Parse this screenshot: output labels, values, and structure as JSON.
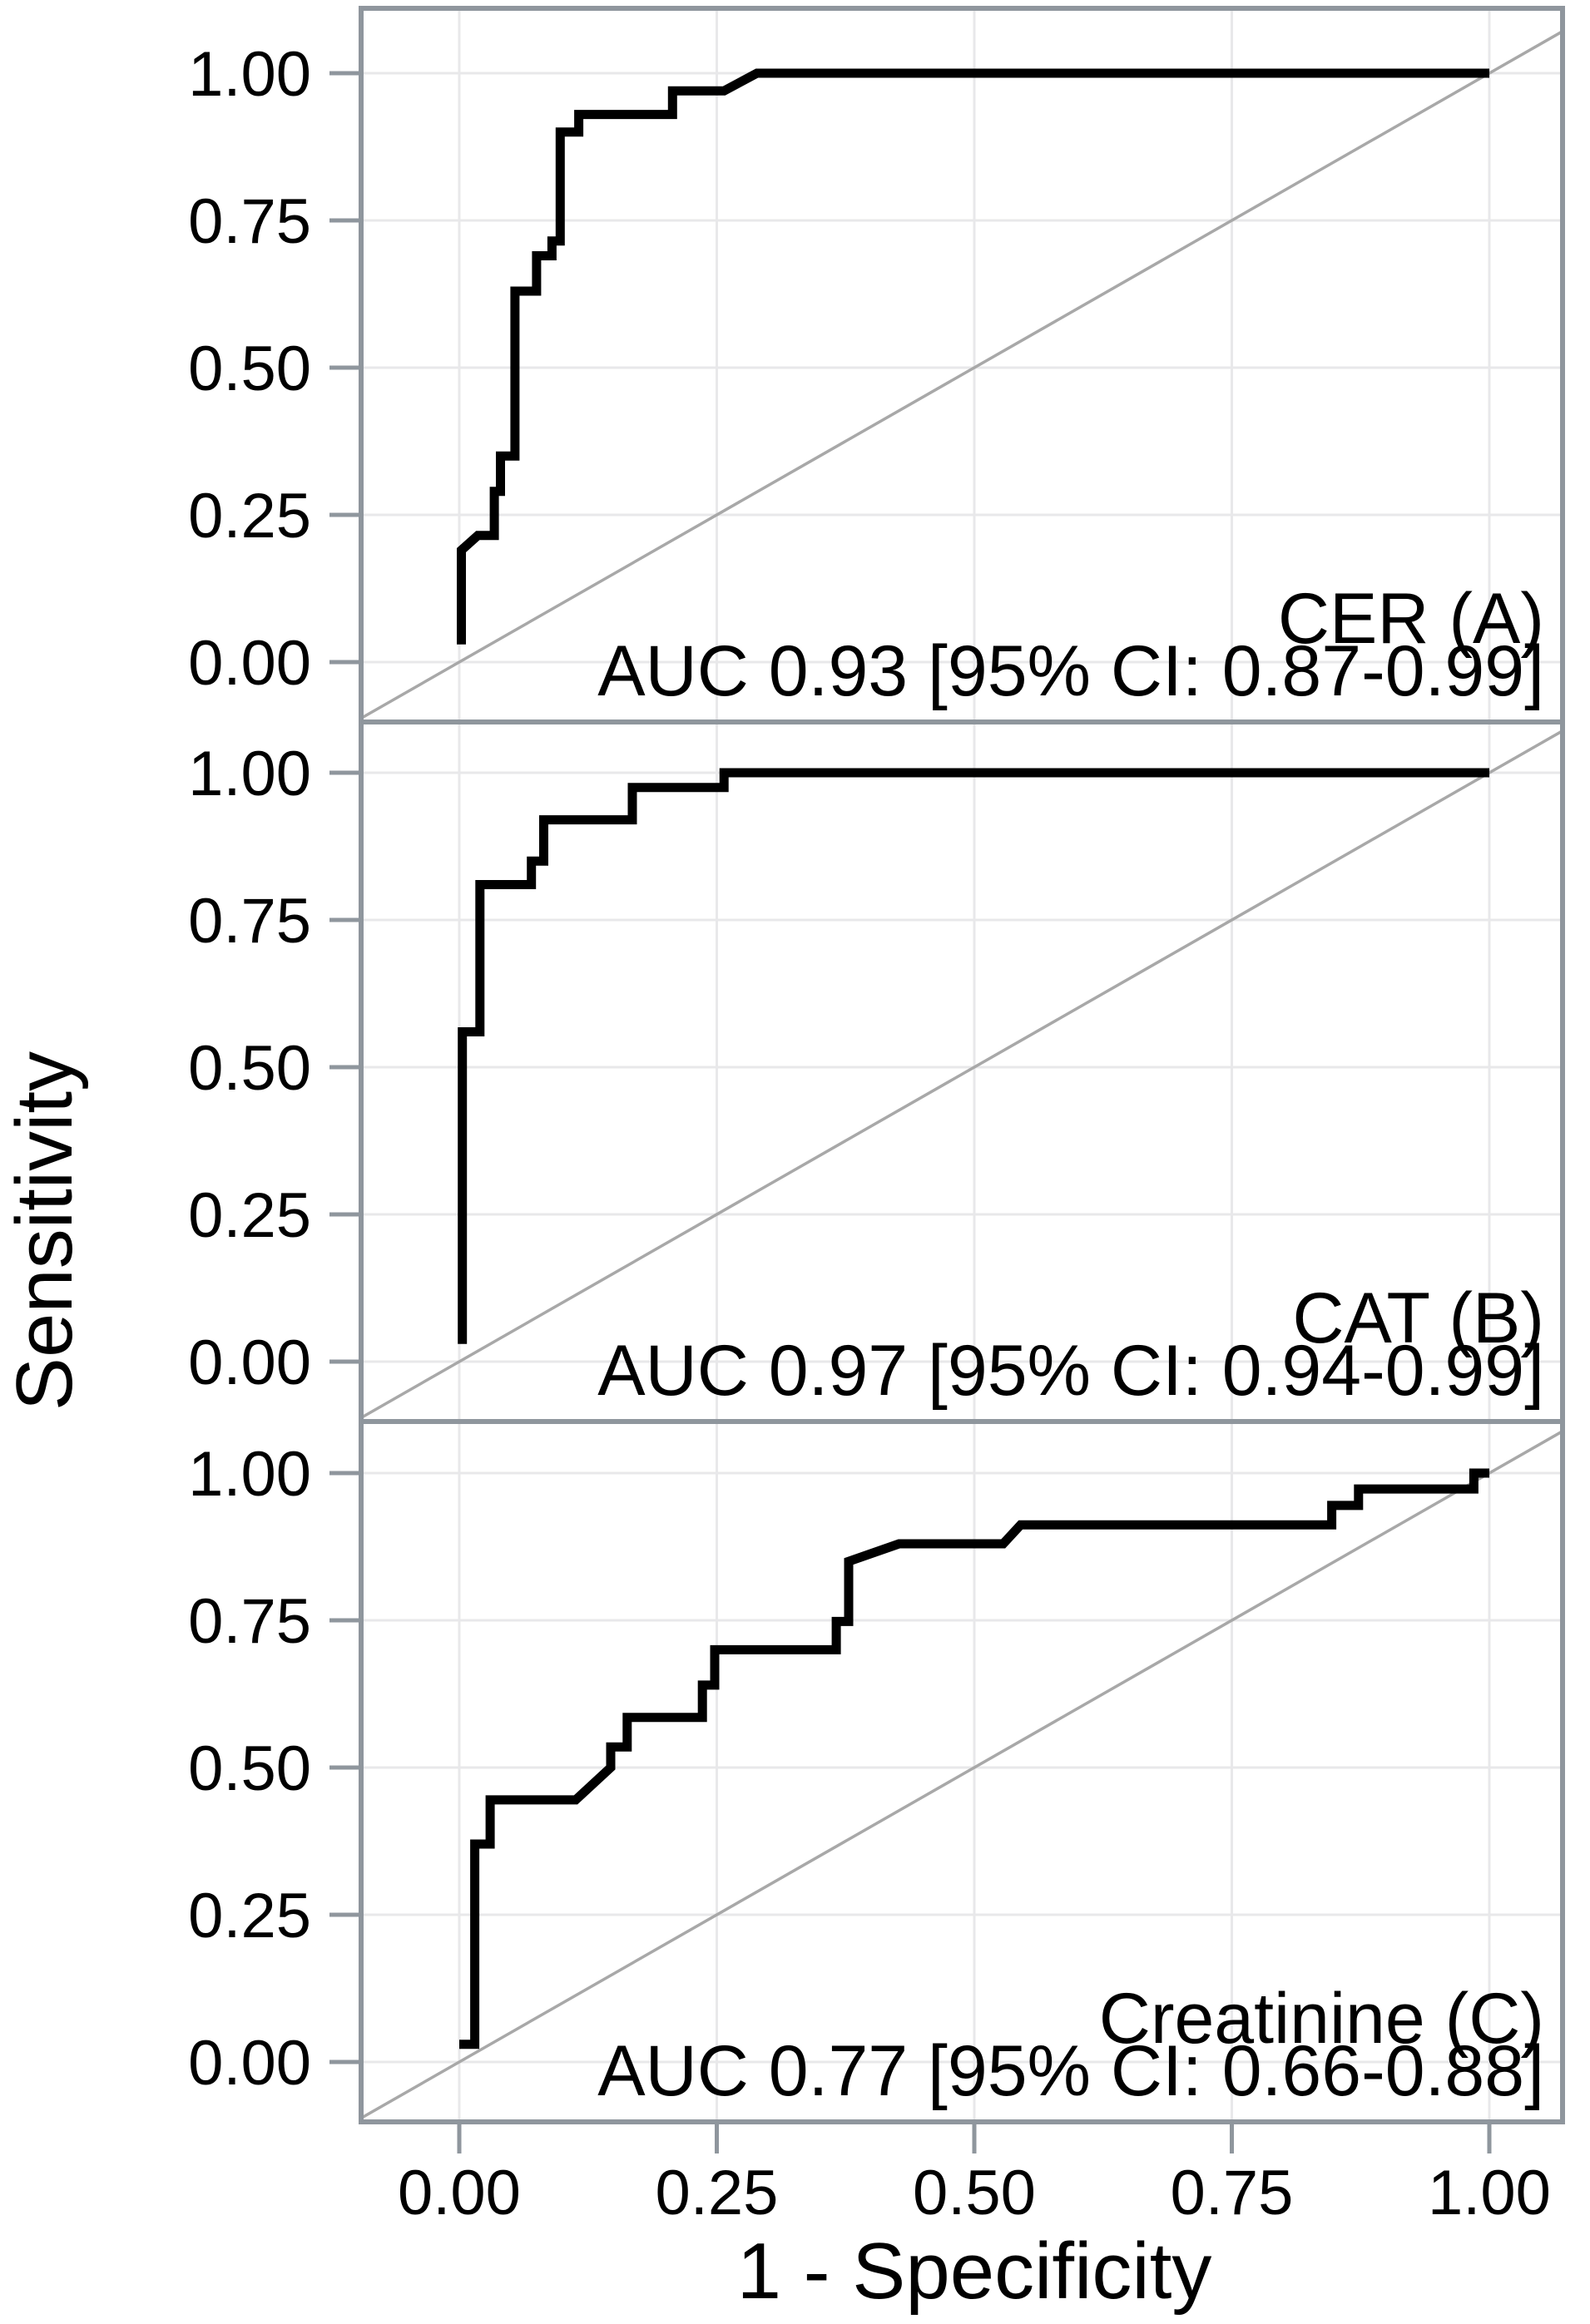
{
  "figure": {
    "background_color": "#ffffff",
    "x_axis": {
      "title": "1 - Specificity",
      "tick_labels": [
        "0.00",
        "0.25",
        "0.50",
        "0.75",
        "1.00"
      ],
      "tick_values": [
        0,
        0.25,
        0.5,
        0.75,
        1
      ],
      "range": [
        0,
        1
      ]
    },
    "y_axis": {
      "title": "Sensitivity",
      "tick_labels": [
        "1.00",
        "0.75",
        "0.50",
        "0.25",
        "0.00"
      ],
      "tick_values": [
        1,
        0.75,
        0.5,
        0.25,
        0
      ],
      "range": [
        0,
        1
      ]
    },
    "styles": {
      "curve_color": "#000000",
      "diagonal_color": "#a8a8a8",
      "grid_color": "#e8e8ea",
      "border_color": "#8f969d",
      "tick_color": "#8f969d",
      "text_color": "#000000"
    }
  },
  "chart_data": [
    {
      "type": "line",
      "panel_label": "CER (A)",
      "annotation": "AUC 0.93 [95% CI: 0.87-0.99]",
      "auc": 0.93,
      "ci_95": "0.87-0.99",
      "xlabel": "1 - Specificity",
      "ylabel": "Sensitivity",
      "xlim": [
        0,
        1
      ],
      "ylim": [
        0,
        1
      ],
      "grid": true,
      "legend": "none",
      "series": [
        {
          "name": "ROC curve",
          "points": [
            [
              0.002,
              0.03
            ],
            [
              0.002,
              0.19
            ],
            [
              0.018,
              0.215
            ],
            [
              0.034,
              0.215
            ],
            [
              0.034,
              0.29
            ],
            [
              0.04,
              0.29
            ],
            [
              0.04,
              0.35
            ],
            [
              0.054,
              0.35
            ],
            [
              0.054,
              0.63
            ],
            [
              0.075,
              0.63
            ],
            [
              0.075,
              0.69
            ],
            [
              0.09,
              0.69
            ],
            [
              0.09,
              0.715
            ],
            [
              0.098,
              0.715
            ],
            [
              0.098,
              0.9
            ],
            [
              0.116,
              0.9
            ],
            [
              0.116,
              0.93
            ],
            [
              0.207,
              0.93
            ],
            [
              0.207,
              0.97
            ],
            [
              0.257,
              0.97
            ],
            [
              0.289,
              1.0
            ],
            [
              1.0,
              1.0
            ]
          ]
        },
        {
          "name": "chance line",
          "points": [
            [
              0,
              0
            ],
            [
              1,
              1
            ]
          ]
        }
      ]
    },
    {
      "type": "line",
      "panel_label": "CAT (B)",
      "annotation": "AUC 0.97 [95% CI: 0.94-0.99]",
      "auc": 0.97,
      "ci_95": "0.94-0.99",
      "xlabel": "1 - Specificity",
      "ylabel": "Sensitivity",
      "xlim": [
        0,
        1
      ],
      "ylim": [
        0,
        1
      ],
      "grid": true,
      "legend": "none",
      "series": [
        {
          "name": "ROC curve",
          "points": [
            [
              0.003,
              0.03
            ],
            [
              0.003,
              0.56
            ],
            [
              0.02,
              0.56
            ],
            [
              0.02,
              0.81
            ],
            [
              0.07,
              0.81
            ],
            [
              0.07,
              0.85
            ],
            [
              0.082,
              0.85
            ],
            [
              0.082,
              0.92
            ],
            [
              0.168,
              0.92
            ],
            [
              0.168,
              0.975
            ],
            [
              0.257,
              0.975
            ],
            [
              0.257,
              1.0
            ],
            [
              1.0,
              1.0
            ]
          ]
        },
        {
          "name": "chance line",
          "points": [
            [
              0,
              0
            ],
            [
              1,
              1
            ]
          ]
        }
      ]
    },
    {
      "type": "line",
      "panel_label": "Creatinine (C)",
      "annotation": "AUC 0.77 [95% CI: 0.66-0.88]",
      "auc": 0.77,
      "ci_95": "0.66-0.88",
      "xlabel": "1 - Specificity",
      "ylabel": "Sensitivity",
      "xlim": [
        0,
        1
      ],
      "ylim": [
        0,
        1
      ],
      "grid": true,
      "legend": "none",
      "series": [
        {
          "name": "ROC curve",
          "points": [
            [
              0.0,
              0.03
            ],
            [
              0.015,
              0.03
            ],
            [
              0.015,
              0.37
            ],
            [
              0.03,
              0.37
            ],
            [
              0.03,
              0.445
            ],
            [
              0.113,
              0.445
            ],
            [
              0.147,
              0.5
            ],
            [
              0.147,
              0.535
            ],
            [
              0.163,
              0.535
            ],
            [
              0.163,
              0.585
            ],
            [
              0.236,
              0.585
            ],
            [
              0.236,
              0.64
            ],
            [
              0.248,
              0.64
            ],
            [
              0.248,
              0.7
            ],
            [
              0.366,
              0.7
            ],
            [
              0.366,
              0.748
            ],
            [
              0.378,
              0.748
            ],
            [
              0.378,
              0.85
            ],
            [
              0.427,
              0.88
            ],
            [
              0.528,
              0.88
            ],
            [
              0.545,
              0.912
            ],
            [
              0.847,
              0.912
            ],
            [
              0.847,
              0.945
            ],
            [
              0.873,
              0.945
            ],
            [
              0.873,
              0.973
            ],
            [
              0.985,
              0.973
            ],
            [
              0.985,
              1.0
            ],
            [
              1.0,
              1.0
            ]
          ]
        },
        {
          "name": "chance line",
          "points": [
            [
              0,
              0
            ],
            [
              1,
              1
            ]
          ]
        }
      ]
    }
  ]
}
